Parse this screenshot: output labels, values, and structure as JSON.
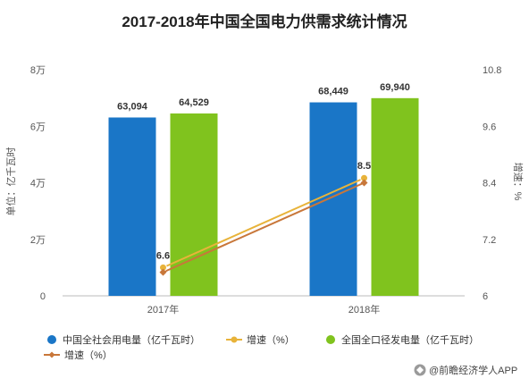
{
  "chart_data": {
    "type": "bar",
    "title": "2017-2018年中国全国电力供需求统计情况",
    "categories": [
      "2017年",
      "2018年"
    ],
    "series": [
      {
        "name": "中国全社会用电量（亿千瓦时）",
        "kind": "bar",
        "axis": "left",
        "color": "#1a76c7",
        "values": [
          63094,
          68449
        ],
        "labels": [
          "63,094",
          "68,449"
        ]
      },
      {
        "name": "全国全口径发电量（亿千瓦时）",
        "kind": "bar",
        "axis": "left",
        "color": "#80c31e",
        "values": [
          64529,
          69940
        ],
        "labels": [
          "64,529",
          "69,940"
        ]
      },
      {
        "name": "增速（%）",
        "kind": "line",
        "axis": "right",
        "color": "#e8b33a",
        "marker": "circle",
        "values": [
          6.6,
          8.5
        ],
        "labels": [
          "6.6",
          "8.5"
        ]
      },
      {
        "name": "增速（%）",
        "kind": "line",
        "axis": "right",
        "color": "#c8773a",
        "marker": "diamond",
        "values": [
          6.5,
          8.4
        ],
        "labels": [
          "",
          ""
        ]
      }
    ],
    "y_left": {
      "label": "单位：亿千瓦时",
      "ylim": [
        0,
        80000
      ],
      "ticks": [
        0,
        20000,
        40000,
        60000,
        80000
      ],
      "tick_labels": [
        "0",
        "2万",
        "4万",
        "6万",
        "8万"
      ]
    },
    "y_right": {
      "label": "增速：%",
      "ylim": [
        6,
        10.8
      ],
      "ticks": [
        6,
        7.2,
        8.4,
        9.6,
        10.8
      ],
      "tick_labels": [
        "6",
        "7.2",
        "8.4",
        "9.6",
        "10.8"
      ]
    },
    "grid": false,
    "legend_position": "bottom-left"
  },
  "source": "@前瞻经济学人APP"
}
